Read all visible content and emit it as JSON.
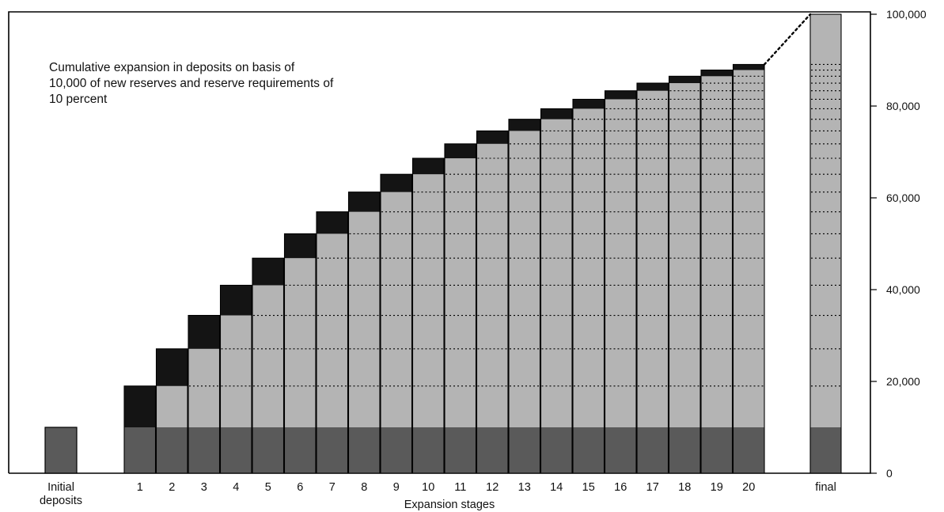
{
  "chart_data": {
    "type": "bar",
    "annotation": "Cumulative expansion in deposits on basis of 10,000 of new reserves and reserve requirements of 10 percent",
    "xlabel": "Expansion stages",
    "ylabel": "",
    "ylim": [
      0,
      100000
    ],
    "y_ticks": [
      "0",
      "20,000",
      "40,000",
      "60,000",
      "80,000",
      "100,000"
    ],
    "y_tick_values": [
      0,
      20000,
      40000,
      60000,
      80000,
      100000
    ],
    "y_axis_side": "right",
    "initial": {
      "label": "Initial deposits",
      "label_lines": [
        "Initial",
        "deposits"
      ],
      "value": 10000
    },
    "categories": [
      "1",
      "2",
      "3",
      "4",
      "5",
      "6",
      "7",
      "8",
      "9",
      "10",
      "11",
      "12",
      "13",
      "14",
      "15",
      "16",
      "17",
      "18",
      "19",
      "20"
    ],
    "series": [
      {
        "values": [
          10000,
          10000,
          10000,
          10000,
          10000,
          10000,
          10000,
          10000,
          10000,
          10000,
          10000,
          10000,
          10000,
          10000,
          10000,
          10000,
          10000,
          10000,
          10000,
          10000
        ]
      },
      {
        "values": [
          0,
          9000,
          17100,
          24390,
          30951,
          36856,
          42170,
          46953,
          51258,
          55132,
          58619,
          61757,
          64581,
          67123,
          69411,
          71470,
          73323,
          74991,
          76491,
          77842
        ]
      },
      {
        "values": [
          9000,
          8100,
          7290,
          6561,
          5905,
          5314,
          4783,
          4305,
          3874,
          3487,
          3138,
          2824,
          2542,
          2288,
          2059,
          1853,
          1668,
          1501,
          1351,
          1216
        ]
      }
    ],
    "cumulative_totals": [
      19000,
      27100,
      34390,
      40951,
      46856,
      52170,
      56953,
      61258,
      65132,
      68619,
      71757,
      74581,
      77123,
      79411,
      81470,
      83323,
      84991,
      86491,
      87842,
      89058
    ],
    "final": {
      "label": "final",
      "value": 100000,
      "base": 10000
    },
    "colors": {
      "base": "#5a5a5a",
      "expansion": "#b4b4b4",
      "new_increment": "#141414",
      "outline": "#000000",
      "dotted": "#000000"
    },
    "grid": false,
    "legend": "none"
  }
}
